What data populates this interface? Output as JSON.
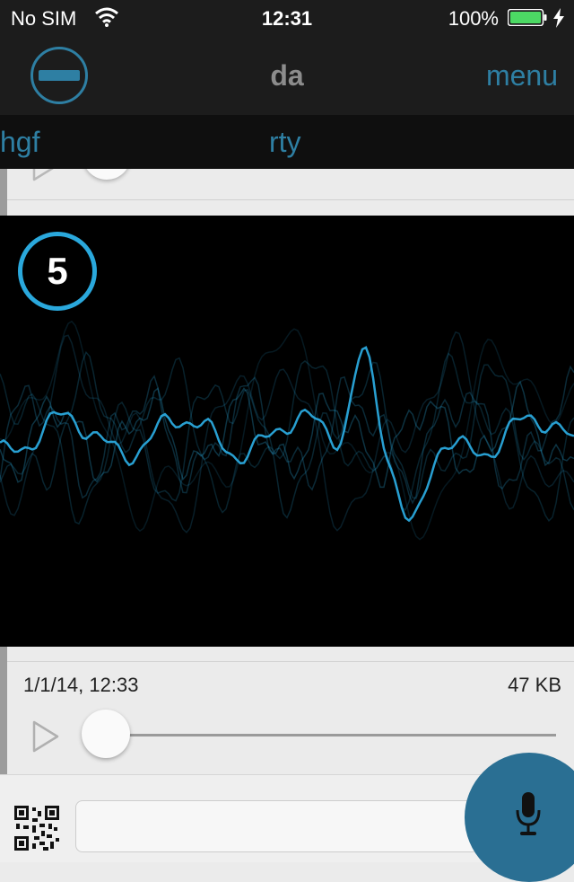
{
  "status_bar": {
    "carrier": "No SIM",
    "time": "12:31",
    "battery_percent": "100%"
  },
  "nav": {
    "title": "da",
    "menu_label": "menu"
  },
  "tabs": [
    {
      "label": "hgf"
    },
    {
      "label": "rty"
    }
  ],
  "visualizer": {
    "count": "5",
    "accent_color": "#2aa8dc"
  },
  "recording": {
    "date": "1/1/14, 12:33",
    "size": "47 KB",
    "progress": 0
  },
  "colors": {
    "accent": "#2e7fa3",
    "mic_button": "#2a6f93",
    "nav_background": "#1c1c1c",
    "battery_fill": "#4cd964"
  },
  "icons": {
    "remove": "minus-circle-icon",
    "play": "play-icon",
    "qr": "qr-code-icon",
    "mic": "microphone-icon",
    "wifi": "wifi-icon",
    "battery": "battery-icon",
    "charging": "charging-bolt-icon"
  },
  "input": {
    "value": ""
  }
}
